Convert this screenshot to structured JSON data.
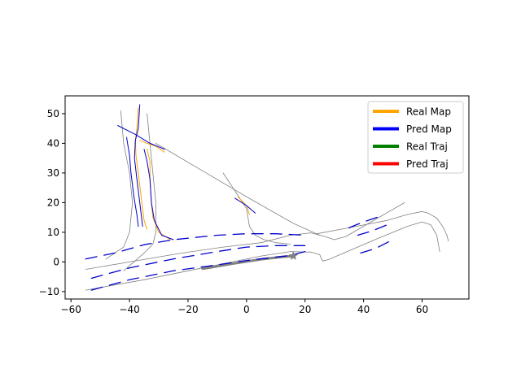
{
  "chart_data": {
    "type": "line",
    "title": "",
    "xlabel": "",
    "ylabel": "",
    "xlim": [
      -62,
      76
    ],
    "ylim": [
      -12.5,
      56
    ],
    "xticks": [
      -60,
      -40,
      -20,
      0,
      20,
      40,
      60
    ],
    "yticks": [
      -10,
      0,
      10,
      20,
      30,
      40,
      50
    ],
    "grid": false,
    "legend_position": "top-right",
    "legend": [
      {
        "label": "Real Map",
        "color": "#ffa500"
      },
      {
        "label": "Pred Map",
        "color": "#0000ff"
      },
      {
        "label": "Real Traj",
        "color": "#008000"
      },
      {
        "label": "Pred Traj",
        "color": "#ff0000"
      }
    ],
    "series": [
      {
        "role": "history-trajectory",
        "color": "#808080",
        "width": 3,
        "points": [
          [
            -15,
            -2.3
          ],
          [
            -5,
            -0.6
          ],
          [
            5,
            0.9
          ],
          [
            12,
            1.7
          ],
          [
            16,
            2.0
          ]
        ]
      },
      {
        "role": "context-lane",
        "color": "#808080",
        "width": 0.8,
        "points": [
          [
            -55,
            -2.5
          ],
          [
            -40,
            0
          ],
          [
            -22,
            3
          ],
          [
            -8,
            5
          ],
          [
            5,
            6.5
          ],
          [
            15,
            9
          ],
          [
            22,
            9.8
          ],
          [
            26,
            8.8
          ],
          [
            30,
            7.5
          ],
          [
            34,
            8.6
          ],
          [
            54,
            20
          ]
        ]
      },
      {
        "role": "context-lane",
        "color": "#808080",
        "width": 0.8,
        "points": [
          [
            -55,
            -9.5
          ],
          [
            -35,
            -6
          ],
          [
            -15,
            -2
          ],
          [
            5,
            2
          ],
          [
            15,
            3.5
          ],
          [
            22,
            3.3
          ],
          [
            25,
            2.5
          ],
          [
            26,
            0.3
          ],
          [
            28,
            0.8
          ],
          [
            45,
            8
          ],
          [
            55,
            12
          ],
          [
            60,
            13.5
          ],
          [
            63,
            12.5
          ],
          [
            65,
            9
          ],
          [
            66,
            3.5
          ]
        ]
      },
      {
        "role": "context-lane",
        "color": "#808080",
        "width": 0.8,
        "points": [
          [
            24,
            9.5
          ],
          [
            35,
            11.5
          ],
          [
            48,
            14
          ],
          [
            55,
            16
          ],
          [
            60,
            17
          ],
          [
            62,
            16.5
          ],
          [
            65,
            14.8
          ],
          [
            67,
            12
          ],
          [
            68.5,
            9
          ],
          [
            69,
            7
          ]
        ]
      },
      {
        "role": "context-lane",
        "color": "#808080",
        "width": 0.8,
        "points": [
          [
            -31,
            40
          ],
          [
            0,
            22
          ],
          [
            16,
            13
          ],
          [
            25,
            9
          ]
        ]
      },
      {
        "role": "context-lane",
        "color": "#808080",
        "width": 0.8,
        "points": [
          [
            -43,
            51
          ],
          [
            -42,
            40
          ],
          [
            -40,
            30
          ],
          [
            -39,
            20
          ],
          [
            -40,
            10
          ],
          [
            -42,
            5
          ],
          [
            -48,
            1
          ]
        ]
      },
      {
        "role": "context-lane",
        "color": "#808080",
        "width": 0.8,
        "points": [
          [
            -34,
            50
          ],
          [
            -33,
            40
          ],
          [
            -32,
            30
          ],
          [
            -31,
            20
          ],
          [
            -31,
            10
          ],
          [
            -32,
            6
          ],
          [
            -35,
            3
          ],
          [
            -42,
            -3
          ]
        ]
      },
      {
        "role": "context-lane",
        "color": "#808080",
        "width": 0.8,
        "points": [
          [
            -8,
            30
          ],
          [
            -4,
            24
          ],
          [
            0,
            18
          ],
          [
            1,
            12
          ],
          [
            3,
            9
          ],
          [
            6,
            7.5
          ],
          [
            10,
            6.5
          ],
          [
            15,
            6
          ]
        ]
      },
      {
        "role": "real-map",
        "color": "#ffa500",
        "width": 1,
        "points": [
          [
            -37,
            52
          ],
          [
            -37.5,
            45
          ],
          [
            -38,
            41
          ],
          [
            -37.8,
            36
          ],
          [
            -37,
            30
          ],
          [
            -36,
            22
          ],
          [
            -35,
            14
          ],
          [
            -34,
            11
          ]
        ]
      },
      {
        "role": "real-map",
        "color": "#ffa500",
        "width": 1,
        "points": [
          [
            -36.5,
            41
          ],
          [
            -34,
            40
          ],
          [
            -31,
            39
          ],
          [
            -28,
            37
          ]
        ]
      },
      {
        "role": "real-map",
        "color": "#ffa500",
        "width": 1,
        "points": [
          [
            -34,
            38
          ],
          [
            -33,
            34
          ],
          [
            -33,
            28
          ],
          [
            -32.5,
            20
          ],
          [
            -32,
            15
          ],
          [
            -30,
            10
          ],
          [
            -26,
            7.5
          ]
        ]
      },
      {
        "role": "real-map",
        "color": "#ffa500",
        "width": 1,
        "points": [
          [
            -3,
            22
          ],
          [
            0,
            19
          ],
          [
            1,
            16
          ]
        ]
      },
      {
        "role": "pred-map",
        "color": "#0000cc",
        "width": 1,
        "points": [
          [
            -36.5,
            53
          ],
          [
            -37,
            45
          ],
          [
            -38,
            41
          ],
          [
            -38.3,
            35
          ],
          [
            -37.5,
            28
          ],
          [
            -36.5,
            20
          ],
          [
            -35.5,
            12
          ]
        ]
      },
      {
        "role": "pred-map",
        "color": "#0000cc",
        "width": 1,
        "points": [
          [
            -41,
            42
          ],
          [
            -40,
            36
          ],
          [
            -39.5,
            30
          ],
          [
            -38.5,
            22
          ],
          [
            -37.5,
            16
          ],
          [
            -37,
            12
          ]
        ]
      },
      {
        "role": "pred-map",
        "color": "#0000cc",
        "width": 1,
        "points": [
          [
            -44,
            46
          ],
          [
            -38,
            43
          ],
          [
            -33,
            40
          ],
          [
            -28,
            38
          ]
        ]
      },
      {
        "role": "pred-map",
        "color": "#0000cc",
        "width": 1,
        "points": [
          [
            -35,
            38
          ],
          [
            -34,
            34
          ],
          [
            -33,
            28
          ],
          [
            -32.5,
            20
          ],
          [
            -31.5,
            14
          ],
          [
            -29,
            9
          ],
          [
            -25,
            7.5
          ]
        ]
      },
      {
        "role": "pred-map",
        "color": "#0000cc",
        "width": 1,
        "points": [
          [
            -4,
            21.5
          ],
          [
            0,
            19
          ],
          [
            3,
            16.5
          ]
        ]
      },
      {
        "role": "pred-map-dashed",
        "color": "#0000cc",
        "width": 1.3,
        "points": [
          [
            -55,
            1
          ],
          [
            -45,
            3
          ],
          [
            -35,
            5.8
          ],
          [
            -25,
            7.5
          ],
          [
            -10,
            9
          ],
          [
            0,
            9.5
          ],
          [
            10,
            9.5
          ],
          [
            20,
            9
          ]
        ]
      },
      {
        "role": "pred-map-dashed",
        "color": "#0000cc",
        "width": 1.3,
        "points": [
          [
            -53,
            -5.5
          ],
          [
            -40,
            -2
          ],
          [
            -25,
            1
          ],
          [
            -10,
            3.5
          ],
          [
            0,
            5
          ],
          [
            10,
            5.5
          ],
          [
            20,
            5.5
          ]
        ]
      },
      {
        "role": "pred-map-dashed",
        "color": "#0000cc",
        "width": 1.3,
        "points": [
          [
            -53,
            -9.5
          ],
          [
            -40,
            -6
          ],
          [
            -25,
            -3
          ],
          [
            -10,
            -1
          ],
          [
            0,
            0.5
          ],
          [
            15,
            2.2
          ],
          [
            20,
            3.5
          ]
        ]
      },
      {
        "role": "pred-map-dashed",
        "color": "#0000cc",
        "width": 1.3,
        "points": [
          [
            35,
            11.5
          ],
          [
            40,
            13.5
          ],
          [
            46,
            15.5
          ]
        ]
      },
      {
        "role": "pred-map-dashed",
        "color": "#0000cc",
        "width": 1.3,
        "points": [
          [
            38,
            9
          ],
          [
            43,
            10.5
          ],
          [
            48,
            12.5
          ]
        ]
      },
      {
        "role": "pred-map-dashed",
        "color": "#0000cc",
        "width": 1.3,
        "points": [
          [
            39,
            3
          ],
          [
            44,
            4.5
          ],
          [
            49,
            7
          ]
        ]
      }
    ],
    "markers": [
      {
        "role": "ego-position",
        "shape": "star",
        "color": "#808080",
        "x": 16,
        "y": 2
      }
    ]
  }
}
